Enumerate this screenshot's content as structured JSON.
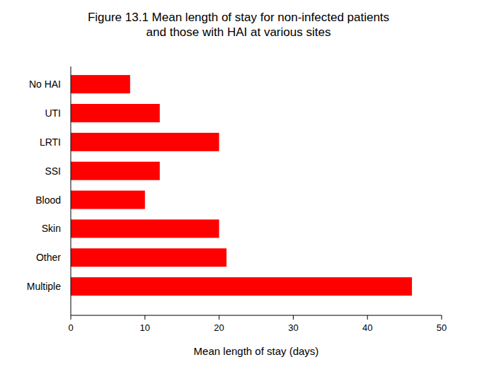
{
  "chart_data": {
    "type": "bar",
    "orientation": "horizontal",
    "title": "Figure 13.1 Mean length of stay for non-infected patients\nand those with HAI at various sites",
    "x_label": "Mean length of stay (days)",
    "categories": [
      "No HAI",
      "UTI",
      "LRTI",
      "SSI",
      "Blood",
      "Skin",
      "Other",
      "Multiple"
    ],
    "values": [
      8,
      12,
      20,
      12,
      10,
      20,
      21,
      46
    ],
    "color": "#ff0000",
    "xlim": [
      0,
      50
    ],
    "xticks": [
      0,
      10,
      20,
      30,
      40,
      50
    ],
    "grid": false
  }
}
